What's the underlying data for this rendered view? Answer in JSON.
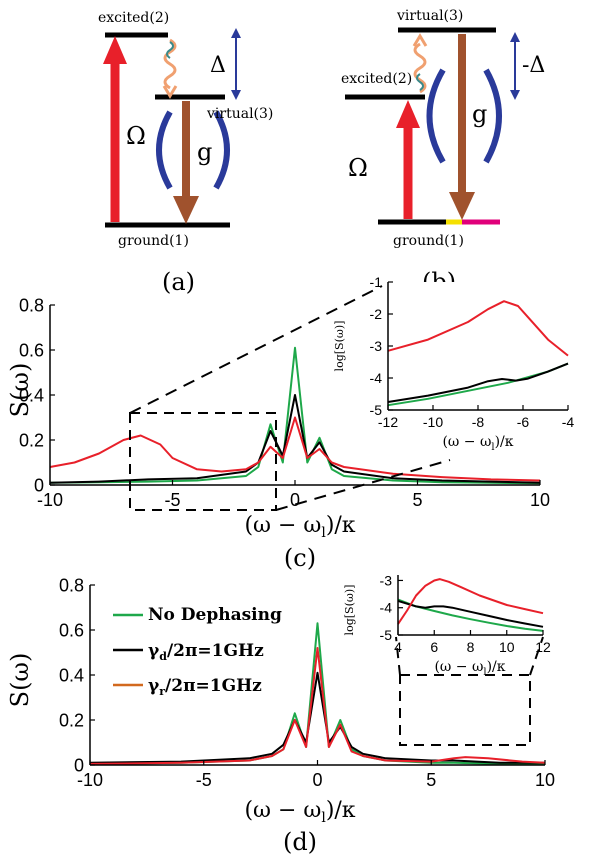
{
  "diagram_a": {
    "excited": "excited(2)",
    "virtual": "virtual(3)",
    "ground": "ground(1)",
    "omega": "Ω",
    "g": "g",
    "delta": "Δ",
    "panel": "(a)"
  },
  "diagram_b": {
    "excited": "excited(2)",
    "virtual": "virtual(3)",
    "ground": "ground(1)",
    "omega": "Ω",
    "g": "g",
    "delta": "-Δ",
    "panel": "(b)"
  },
  "colors": {
    "red": "#e8202a",
    "green": "#1ea84a",
    "black": "#000000",
    "brown": "#a0522d",
    "blue": "#2a3a9a",
    "orange_wave": "#f0a070",
    "teal_wave": "#3a8a8a",
    "yellow": "#f5e000",
    "magenta": "#e0007a"
  },
  "chart_data": [
    {
      "id": "c",
      "type": "line",
      "panel_label": "(c)",
      "xlabel": "(ω − ω_l)/κ",
      "ylabel": "S(ω)",
      "xlim": [
        -10,
        10
      ],
      "ylim": [
        0,
        0.8
      ],
      "xticks": [
        "-10",
        "-5",
        "0",
        "5",
        "10"
      ],
      "yticks": [
        "0",
        "0.2",
        "0.4",
        "0.6",
        "0.8"
      ],
      "series": [
        {
          "color": "#1ea84a",
          "x": [
            -10,
            -8,
            -6,
            -4,
            -2,
            -1.5,
            -1,
            -0.5,
            0,
            0.5,
            1,
            1.5,
            2,
            4,
            6,
            8,
            10
          ],
          "y": [
            0.01,
            0.012,
            0.015,
            0.02,
            0.04,
            0.08,
            0.27,
            0.1,
            0.61,
            0.1,
            0.21,
            0.07,
            0.04,
            0.02,
            0.012,
            0.01,
            0.008
          ]
        },
        {
          "color": "#000000",
          "x": [
            -10,
            -8,
            -6,
            -4,
            -2,
            -1.5,
            -1,
            -0.5,
            0,
            0.5,
            1,
            1.5,
            2,
            4,
            6,
            8,
            10
          ],
          "y": [
            0.01,
            0.015,
            0.025,
            0.03,
            0.06,
            0.1,
            0.24,
            0.13,
            0.4,
            0.12,
            0.19,
            0.09,
            0.06,
            0.03,
            0.02,
            0.015,
            0.01
          ]
        },
        {
          "color": "#e8202a",
          "x": [
            -10,
            -9,
            -8,
            -7,
            -6.3,
            -5.5,
            -5,
            -4,
            -3,
            -2,
            -1.5,
            -1,
            -0.5,
            0,
            0.5,
            1,
            1.5,
            2,
            4,
            6,
            8,
            10
          ],
          "y": [
            0.08,
            0.1,
            0.14,
            0.2,
            0.22,
            0.18,
            0.12,
            0.07,
            0.06,
            0.07,
            0.1,
            0.17,
            0.12,
            0.3,
            0.12,
            0.16,
            0.1,
            0.08,
            0.05,
            0.035,
            0.025,
            0.02
          ]
        }
      ],
      "inset": {
        "xlabel": "(ω − ω_l)/κ",
        "ylabel": "log[S(ω)]",
        "xlim": [
          -12,
          -3
        ],
        "ylim": [
          -5,
          -1
        ],
        "xticks": [
          "-12",
          "-10",
          "-8",
          "-6",
          "-4"
        ],
        "yticks": [
          "-1",
          "-2",
          "-3",
          "-4",
          "-5"
        ],
        "series": [
          {
            "color": "#1ea84a",
            "x": [
              -12,
              -10,
              -8,
              -6,
              -4,
              -3
            ],
            "y": [
              -4.85,
              -4.65,
              -4.4,
              -4.15,
              -3.8,
              -3.55
            ]
          },
          {
            "color": "#000000",
            "x": [
              -12,
              -10,
              -8,
              -7,
              -6.3,
              -5.6,
              -5,
              -4,
              -3
            ],
            "y": [
              -4.75,
              -4.55,
              -4.3,
              -4.1,
              -4.03,
              -4.08,
              -4.02,
              -3.8,
              -3.55
            ]
          },
          {
            "color": "#e8202a",
            "x": [
              -12,
              -10,
              -8,
              -7,
              -6.2,
              -5.5,
              -5,
              -4,
              -3
            ],
            "y": [
              -3.15,
              -2.8,
              -2.25,
              -1.85,
              -1.6,
              -1.75,
              -2.1,
              -2.8,
              -3.3
            ]
          }
        ]
      }
    },
    {
      "id": "d",
      "type": "line",
      "panel_label": "(d)",
      "xlabel": "(ω − ω_l)/κ",
      "ylabel": "S(ω)",
      "xlim": [
        -10,
        10
      ],
      "ylim": [
        0,
        0.8
      ],
      "xticks": [
        "-10",
        "-5",
        "0",
        "5",
        "10"
      ],
      "yticks": [
        "0",
        "0.2",
        "0.4",
        "0.6",
        "0.8"
      ],
      "legend": [
        "No Dephasing",
        "γ_d/2π=1GHz",
        "γ_r/2π=1GHz"
      ],
      "series": [
        {
          "color": "#1ea84a",
          "x": [
            -10,
            -6,
            -3,
            -2,
            -1.5,
            -1,
            -0.5,
            0,
            0.5,
            1,
            1.5,
            2,
            3,
            5,
            6,
            8,
            10
          ],
          "y": [
            0.005,
            0.01,
            0.02,
            0.04,
            0.07,
            0.23,
            0.08,
            0.63,
            0.08,
            0.2,
            0.07,
            0.04,
            0.02,
            0.01,
            0.01,
            0.005,
            0.005
          ]
        },
        {
          "color": "#000000",
          "x": [
            -10,
            -6,
            -3,
            -2,
            -1.5,
            -1,
            -0.5,
            0,
            0.5,
            1,
            1.5,
            2,
            3,
            5,
            6,
            8,
            10
          ],
          "y": [
            0.01,
            0.015,
            0.03,
            0.05,
            0.09,
            0.2,
            0.1,
            0.41,
            0.1,
            0.17,
            0.08,
            0.05,
            0.03,
            0.02,
            0.02,
            0.01,
            0.01
          ]
        },
        {
          "color": "#e8202a",
          "x": [
            -10,
            -6,
            -3,
            -2,
            -1.5,
            -1,
            -0.5,
            0,
            0.5,
            1,
            1.5,
            2,
            3,
            5,
            6,
            6.5,
            7.5,
            9,
            10
          ],
          "y": [
            0.005,
            0.01,
            0.02,
            0.04,
            0.07,
            0.2,
            0.08,
            0.52,
            0.08,
            0.18,
            0.06,
            0.04,
            0.02,
            0.015,
            0.03,
            0.035,
            0.03,
            0.015,
            0.01
          ]
        }
      ],
      "inset": {
        "xlabel": "(ω − ω_l)/κ",
        "ylabel": "log[S(ω)]",
        "xlim": [
          4,
          12
        ],
        "ylim": [
          -5,
          -2.8
        ],
        "xticks": [
          "4",
          "6",
          "8",
          "10",
          "12"
        ],
        "yticks": [
          "-3",
          "-4",
          "-5"
        ],
        "series": [
          {
            "color": "#1ea84a",
            "x": [
              4,
              5,
              6,
              7,
              8,
              9,
              10,
              11,
              12
            ],
            "y": [
              -3.7,
              -3.95,
              -4.12,
              -4.28,
              -4.42,
              -4.55,
              -4.67,
              -4.77,
              -4.85
            ]
          },
          {
            "color": "#000000",
            "x": [
              4,
              5,
              5.5,
              6,
              6.5,
              7,
              8,
              9,
              10,
              11,
              12
            ],
            "y": [
              -3.75,
              -3.95,
              -4.0,
              -3.95,
              -3.95,
              -4.0,
              -4.15,
              -4.3,
              -4.45,
              -4.58,
              -4.7
            ]
          },
          {
            "color": "#e8202a",
            "x": [
              4,
              4.5,
              5,
              5.5,
              6,
              6.3,
              6.8,
              7.5,
              8.5,
              10,
              11,
              12
            ],
            "y": [
              -4.6,
              -4.1,
              -3.55,
              -3.2,
              -3.0,
              -2.95,
              -3.05,
              -3.25,
              -3.55,
              -3.9,
              -4.05,
              -4.2
            ]
          }
        ]
      }
    }
  ]
}
